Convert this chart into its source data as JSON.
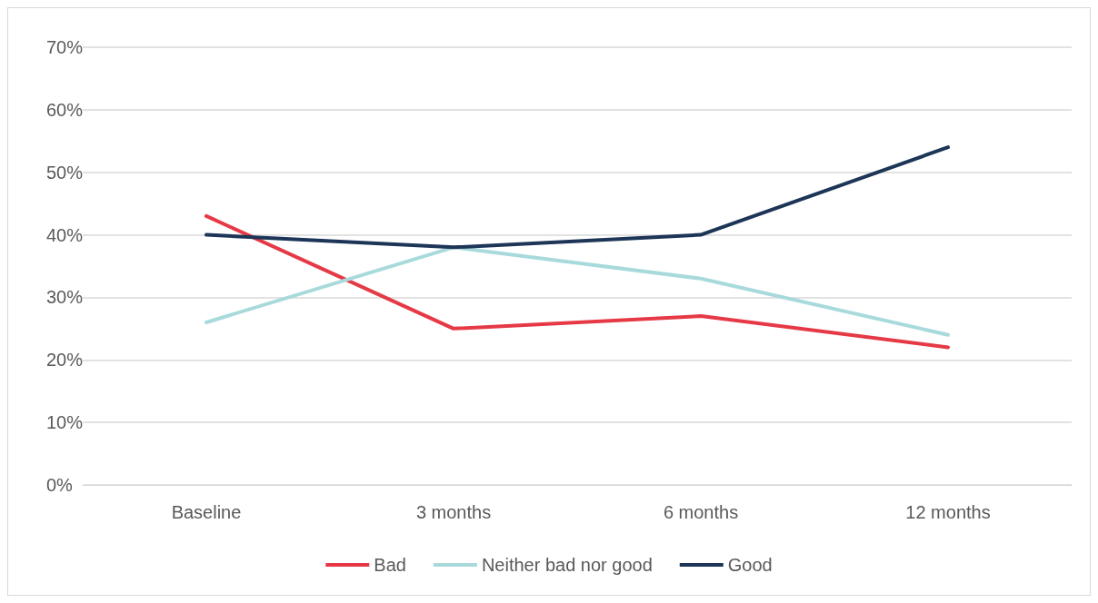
{
  "chart_data": {
    "type": "line",
    "categories": [
      "Baseline",
      "3 months",
      "6 months",
      "12 months"
    ],
    "series": [
      {
        "name": "Bad",
        "color": "#e63946",
        "values": [
          43,
          25,
          27,
          22
        ]
      },
      {
        "name": "Neither bad nor good",
        "color": "#a8dadc",
        "values": [
          26,
          38,
          33,
          24
        ]
      },
      {
        "name": "Good",
        "color": "#1d3557",
        "values": [
          40,
          38,
          40,
          54
        ]
      }
    ],
    "ylim": [
      0,
      70
    ],
    "yticks": [
      {
        "value": 0,
        "label": "0%"
      },
      {
        "value": 10,
        "label": "10%"
      },
      {
        "value": 20,
        "label": "20%"
      },
      {
        "value": 30,
        "label": "30%"
      },
      {
        "value": 40,
        "label": "40%"
      },
      {
        "value": 50,
        "label": "50%"
      },
      {
        "value": 60,
        "label": "60%"
      },
      {
        "value": 70,
        "label": "70%"
      }
    ],
    "grid": "y",
    "legend": "bottom",
    "marker": "none",
    "line_style": "solid"
  }
}
